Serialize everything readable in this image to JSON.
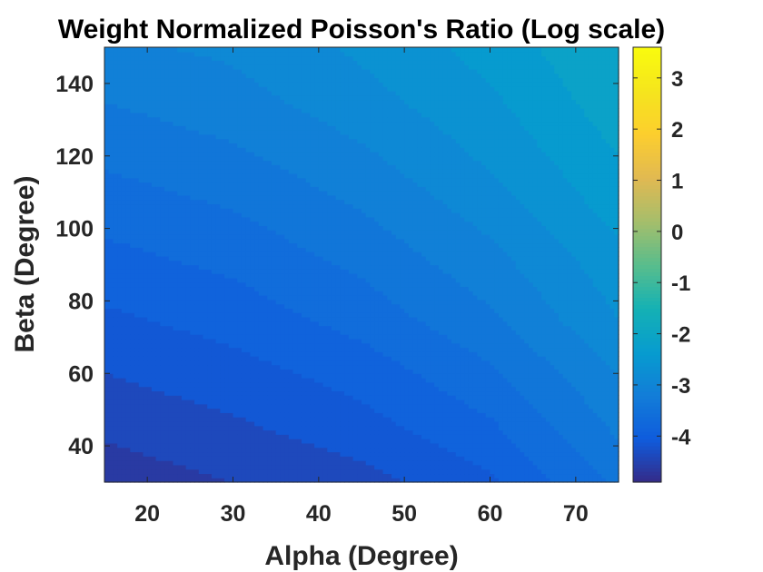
{
  "chart_data": {
    "type": "heatmap",
    "subtype": "filled-contour",
    "title": "Weight Normalized Poisson's Ratio (Log scale)",
    "xlabel": "Alpha (Degree)",
    "ylabel": "Beta (Degree)",
    "xlim": [
      15,
      75
    ],
    "ylim": [
      30,
      150
    ],
    "xticks": [
      20,
      30,
      40,
      50,
      60,
      70
    ],
    "yticks": [
      40,
      60,
      80,
      100,
      120,
      140
    ],
    "x": [
      15,
      30,
      45,
      60,
      75
    ],
    "y": [
      30,
      45,
      60,
      75,
      90,
      105,
      120,
      135,
      150
    ],
    "z": [
      [
        -4.65,
        -4.5,
        -4.35,
        -4.05,
        -3.45
      ],
      [
        -4.45,
        -4.3,
        -4.1,
        -3.8,
        -3.2
      ],
      [
        -4.25,
        -4.1,
        -3.9,
        -3.55,
        -3.0
      ],
      [
        -4.05,
        -3.9,
        -3.65,
        -3.3,
        -2.75
      ],
      [
        -3.85,
        -3.7,
        -3.45,
        -3.1,
        -2.6
      ],
      [
        -3.65,
        -3.5,
        -3.25,
        -2.9,
        -2.4
      ],
      [
        -3.45,
        -3.3,
        -3.05,
        -2.7,
        -2.25
      ],
      [
        -3.25,
        -3.1,
        -2.85,
        -2.55,
        -2.1
      ],
      [
        -3.05,
        -2.95,
        -2.7,
        -2.4,
        -2.0
      ]
    ],
    "colormap": "parula",
    "colorbar": {
      "range": [
        -4.9,
        3.6
      ],
      "ticks": [
        -4,
        -3,
        -2,
        -1,
        0,
        1,
        2,
        3
      ]
    },
    "grid": false
  }
}
